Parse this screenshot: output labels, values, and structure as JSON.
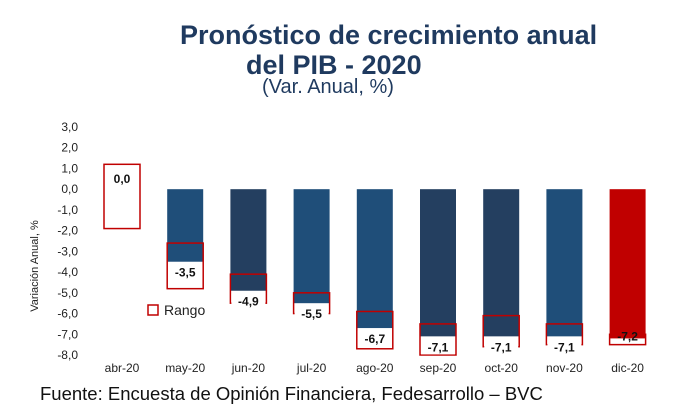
{
  "header": {
    "title_line1": "Pronóstico de crecimiento anual",
    "title_line2": "del PIB - 2020",
    "subtitle": "(Var. Anual, %)"
  },
  "footer": {
    "source": "Fuente: Encuesta de Opinión Financiera, Fedesarrollo – BVC"
  },
  "chart_data": {
    "type": "bar",
    "title": "Pronóstico de crecimiento anual del PIB - 2020",
    "subtitle": "(Var. Anual, %)",
    "ylabel": "Variación Anual, %",
    "xlabel": "",
    "ylim": [
      -8.0,
      3.0
    ],
    "yticks": [
      3.0,
      2.0,
      1.0,
      0.0,
      -1.0,
      -2.0,
      -3.0,
      -4.0,
      -5.0,
      -6.0,
      -7.0,
      -8.0
    ],
    "ytick_labels": [
      "3,0",
      "2,0",
      "1,0",
      "0,0",
      "-1,0",
      "-2,0",
      "-3,0",
      "-4,0",
      "-5,0",
      "-6,0",
      "-7,0",
      "-8,0"
    ],
    "categories": [
      "abr-20",
      "may-20",
      "jun-20",
      "jul-20",
      "ago-20",
      "sep-20",
      "oct-20",
      "nov-20",
      "dic-20"
    ],
    "values": [
      0.0,
      -3.5,
      -4.9,
      -5.5,
      -6.7,
      -7.1,
      -7.1,
      -7.1,
      -7.2
    ],
    "value_labels": [
      "0,0",
      "-3,5",
      "-4,9",
      "-5,5",
      "-6,7",
      "-7,1",
      "-7,1",
      "-7,1",
      "-7,2"
    ],
    "range_low": [
      -1.9,
      -4.8,
      -5.5,
      -6.0,
      -7.7,
      -8.0,
      -7.6,
      -7.5,
      -7.5
    ],
    "range_high": [
      1.2,
      -2.6,
      -4.1,
      -5.0,
      -5.9,
      -6.5,
      -6.1,
      -6.5,
      -7.0
    ],
    "bar_colors": [
      "#ffffff",
      "#1f4e79",
      "#243f60",
      "#1f4e79",
      "#1f4e79",
      "#243f60",
      "#243f60",
      "#1f4e79",
      "#c00000"
    ],
    "range_color": "#c00000",
    "legend": {
      "label": "Rango",
      "placement": "lower-left"
    },
    "grid": false
  }
}
